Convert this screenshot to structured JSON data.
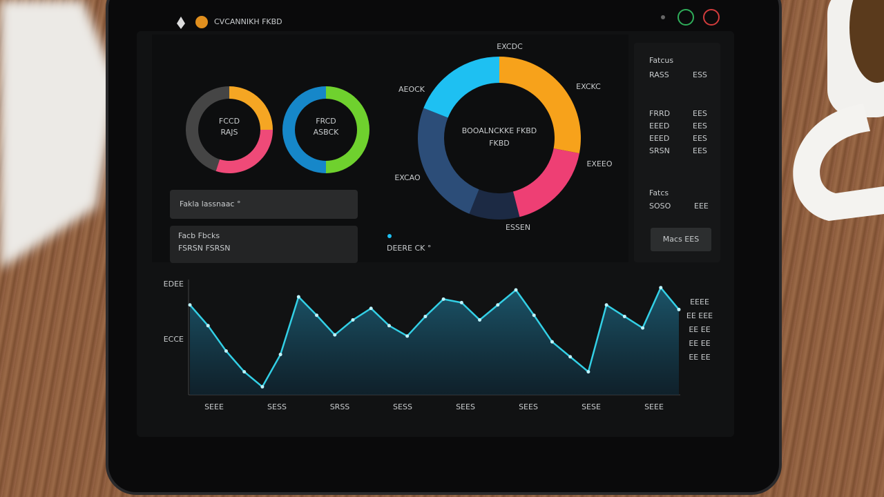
{
  "header": {
    "title": "CVCANNIKH FKBD"
  },
  "donuts": [
    {
      "labels": [
        "FCCD",
        "RAJS"
      ],
      "segments": [
        {
          "value": 25,
          "color": "#f5a623"
        },
        {
          "value": 30,
          "color": "#ef4a78"
        },
        {
          "value": 45,
          "color": "#454545"
        }
      ]
    },
    {
      "labels": [
        "FRCD",
        "ASBCK"
      ],
      "segments": [
        {
          "value": 50,
          "color": "#6fd12e"
        },
        {
          "value": 50,
          "color": "#1687c9"
        }
      ]
    }
  ],
  "main_donut": {
    "center": [
      "BOOALNCKKE FKBD",
      "FKBD"
    ],
    "callouts": [
      "EXCDC",
      "AEOCK",
      "EXCKC",
      "EXEEO",
      "EXCAO",
      "ESSEN"
    ],
    "segments": [
      {
        "value": 28,
        "color": "#f7a21b"
      },
      {
        "value": 18,
        "color": "#ee3f74"
      },
      {
        "value": 10,
        "color": "#1c2a44"
      },
      {
        "value": 25,
        "color": "#2c4d78"
      },
      {
        "value": 19,
        "color": "#1ec0f2"
      }
    ]
  },
  "cards": {
    "first": "Fakla lassnaac °",
    "second_small": "Facb Fbcks",
    "second": "FSRSN  FSRSN",
    "status": "DEERE CK °"
  },
  "sidebar": {
    "title": "Fatcus",
    "rows": [
      [
        "RASS",
        "ESS"
      ],
      [
        "FRRD",
        "EES"
      ],
      [
        "EEED",
        "EES"
      ],
      [
        "EEED",
        "EES"
      ],
      [
        "SRSN",
        "EES"
      ]
    ],
    "subtitle": "Fatcs",
    "total": [
      "SOSO",
      "EEE"
    ],
    "button": "Macs EES"
  },
  "line_chart": {
    "y_labels": [
      "EDEE",
      "ECCE"
    ],
    "right_labels": [
      "EEEE",
      "EE EEE",
      "EE EE",
      "EE EE",
      "EE EE"
    ],
    "x_labels": [
      "SEEE",
      "SESS",
      "SRSS",
      "SESS",
      "SEES",
      "SEES",
      "SESE",
      "SEEE"
    ],
    "values": [
      78,
      60,
      38,
      20,
      7,
      35,
      85,
      69,
      52,
      65,
      75,
      60,
      51,
      68,
      83,
      80,
      65,
      78,
      91,
      69,
      46,
      33,
      20,
      78,
      68,
      58,
      93,
      74
    ],
    "ylim": [
      0,
      100
    ],
    "color": "#33d0e6"
  }
}
